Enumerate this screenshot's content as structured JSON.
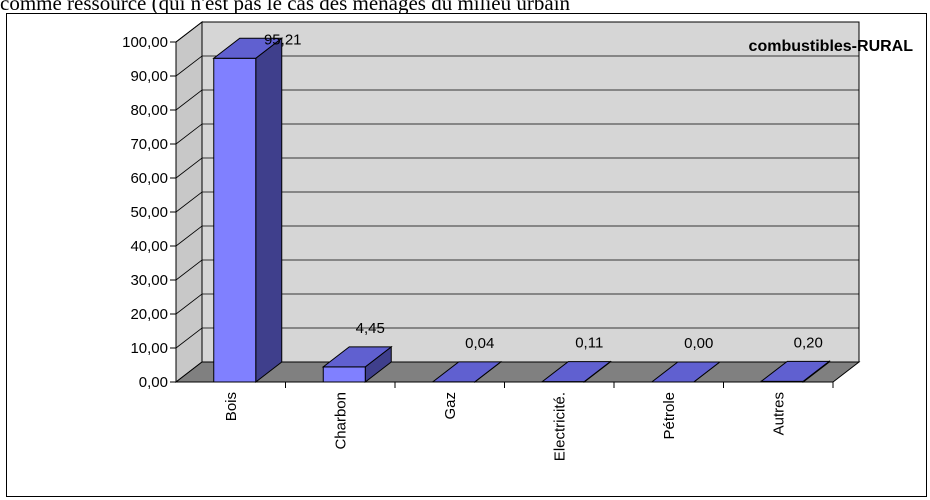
{
  "header_text": "comme ressource (qui n'est pas le cas des ménages du milieu urbain",
  "chart_data": {
    "type": "bar",
    "title": "combustibles-RURAL",
    "categories": [
      "Bois",
      "Charbon",
      "Gaz",
      "Electricité.",
      "Pétrole",
      "Autres"
    ],
    "values": [
      95.21,
      4.45,
      0.04,
      0.11,
      0.0,
      0.2
    ],
    "value_labels": [
      "95,21",
      "4,45",
      "0,04",
      "0,11",
      "0,00",
      "0,20"
    ],
    "ylim": [
      0,
      100
    ],
    "yticks": [
      "0,00",
      "10,00",
      "20,00",
      "30,00",
      "40,00",
      "50,00",
      "60,00",
      "70,00",
      "80,00",
      "90,00",
      "100,00"
    ],
    "xlabel": "",
    "ylabel": "",
    "grid": true,
    "colors": {
      "bar_front": "#8080ff",
      "bar_side": "#3f3f8c",
      "bar_top": "#6060d0",
      "wall": "#c8c8c8",
      "floor": "#808080"
    }
  }
}
